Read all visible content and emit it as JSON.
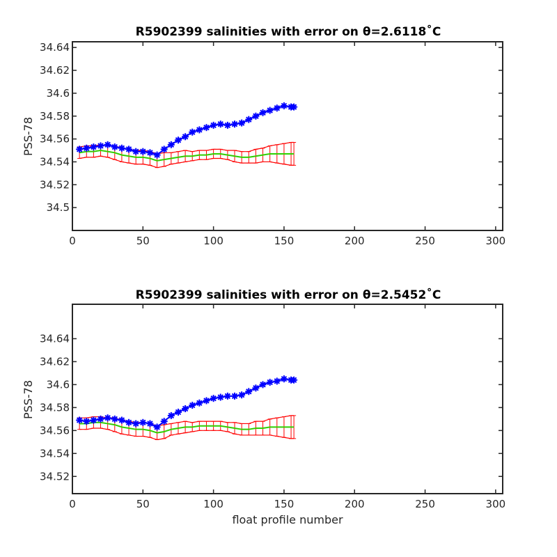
{
  "chart_data": [
    {
      "type": "line",
      "title": "R5902399 salinities with error on θ=2.6118˚C",
      "xlabel": "",
      "ylabel": "PSS-78",
      "xlim": [
        0,
        305
      ],
      "ylim": [
        34.48,
        34.645
      ],
      "xticks": [
        0,
        50,
        100,
        150,
        200,
        250,
        300
      ],
      "yticks": [
        34.5,
        34.52,
        34.54,
        34.56,
        34.58,
        34.6,
        34.62,
        34.64
      ],
      "ytick_labels": [
        "34.5",
        "34.52",
        "34.54",
        "34.56",
        "34.58",
        "34.6",
        "34.62",
        "34.64"
      ],
      "grid": false,
      "colors": {
        "float": "#0000ff",
        "mapped": "#00ff00",
        "error": "#ff0000",
        "axis": "#262626"
      },
      "series": [
        {
          "role": "float",
          "marker": "*",
          "x": [
            5,
            10,
            15,
            20,
            25,
            30,
            35,
            40,
            45,
            50,
            55,
            60,
            65,
            70,
            75,
            80,
            85,
            90,
            95,
            100,
            105,
            110,
            115,
            120,
            125,
            130,
            135,
            140,
            145,
            150,
            155,
            157
          ],
          "y": [
            34.551,
            34.552,
            34.553,
            34.554,
            34.555,
            34.553,
            34.552,
            34.551,
            34.549,
            34.549,
            34.548,
            34.546,
            34.551,
            34.555,
            34.559,
            34.562,
            34.566,
            34.568,
            34.57,
            34.572,
            34.573,
            34.572,
            34.573,
            34.574,
            34.577,
            34.58,
            34.583,
            34.585,
            34.587,
            34.589,
            34.588,
            34.588
          ]
        },
        {
          "role": "mapped",
          "marker": "line",
          "x": [
            5,
            10,
            15,
            20,
            25,
            30,
            35,
            40,
            45,
            50,
            55,
            60,
            65,
            70,
            75,
            80,
            85,
            90,
            95,
            100,
            105,
            110,
            115,
            120,
            125,
            130,
            135,
            140,
            145,
            150,
            155,
            157
          ],
          "y": [
            34.548,
            34.549,
            34.549,
            34.55,
            34.549,
            34.548,
            34.546,
            34.545,
            34.544,
            34.544,
            34.543,
            34.541,
            34.542,
            34.543,
            34.544,
            34.545,
            34.545,
            34.546,
            34.546,
            34.547,
            34.547,
            34.546,
            34.545,
            34.544,
            34.544,
            34.545,
            34.546,
            34.547,
            34.547,
            34.547,
            34.547,
            34.547
          ],
          "err": [
            0.005,
            0.005,
            0.005,
            0.005,
            0.005,
            0.006,
            0.006,
            0.006,
            0.006,
            0.006,
            0.006,
            0.006,
            0.006,
            0.005,
            0.005,
            0.005,
            0.004,
            0.004,
            0.004,
            0.004,
            0.004,
            0.004,
            0.005,
            0.005,
            0.005,
            0.006,
            0.006,
            0.007,
            0.008,
            0.009,
            0.01,
            0.01
          ]
        }
      ]
    },
    {
      "type": "line",
      "title": "R5902399 salinities with error on θ=2.5452˚C",
      "xlabel": "float profile number",
      "ylabel": "PSS-78",
      "xlim": [
        0,
        305
      ],
      "ylim": [
        34.505,
        34.67
      ],
      "xticks": [
        0,
        50,
        100,
        150,
        200,
        250,
        300
      ],
      "yticks": [
        34.52,
        34.54,
        34.56,
        34.58,
        34.6,
        34.62,
        34.64
      ],
      "ytick_labels": [
        "34.52",
        "34.54",
        "34.56",
        "34.58",
        "34.6",
        "34.62",
        "34.64"
      ],
      "grid": false,
      "colors": {
        "float": "#0000ff",
        "mapped": "#00ff00",
        "error": "#ff0000",
        "axis": "#262626"
      },
      "series": [
        {
          "role": "float",
          "marker": "*",
          "x": [
            5,
            10,
            15,
            20,
            25,
            30,
            35,
            40,
            45,
            50,
            55,
            60,
            65,
            70,
            75,
            80,
            85,
            90,
            95,
            100,
            105,
            110,
            115,
            120,
            125,
            130,
            135,
            140,
            145,
            150,
            155,
            157
          ],
          "y": [
            34.569,
            34.568,
            34.569,
            34.57,
            34.571,
            34.57,
            34.569,
            34.567,
            34.566,
            34.567,
            34.566,
            34.563,
            34.568,
            34.573,
            34.576,
            34.579,
            34.582,
            34.584,
            34.586,
            34.588,
            34.589,
            34.59,
            34.59,
            34.591,
            34.594,
            34.597,
            34.6,
            34.602,
            34.603,
            34.605,
            34.604,
            34.604
          ]
        },
        {
          "role": "mapped",
          "marker": "line",
          "x": [
            5,
            10,
            15,
            20,
            25,
            30,
            35,
            40,
            45,
            50,
            55,
            60,
            65,
            70,
            75,
            80,
            85,
            90,
            95,
            100,
            105,
            110,
            115,
            120,
            125,
            130,
            135,
            140,
            145,
            150,
            155,
            157
          ],
          "y": [
            34.566,
            34.566,
            34.567,
            34.567,
            34.566,
            34.565,
            34.563,
            34.562,
            34.561,
            34.561,
            34.56,
            34.558,
            34.559,
            34.561,
            34.562,
            34.563,
            34.563,
            34.564,
            34.564,
            34.564,
            34.564,
            34.563,
            34.562,
            34.561,
            34.561,
            34.562,
            34.562,
            34.563,
            34.563,
            34.563,
            34.563,
            34.563
          ],
          "err": [
            0.005,
            0.005,
            0.005,
            0.005,
            0.005,
            0.006,
            0.006,
            0.006,
            0.006,
            0.006,
            0.006,
            0.006,
            0.006,
            0.005,
            0.005,
            0.005,
            0.004,
            0.004,
            0.004,
            0.004,
            0.004,
            0.004,
            0.005,
            0.005,
            0.005,
            0.006,
            0.006,
            0.007,
            0.008,
            0.009,
            0.01,
            0.01
          ]
        }
      ]
    }
  ]
}
